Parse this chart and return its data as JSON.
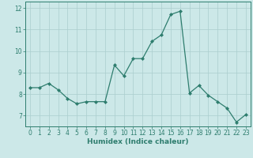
{
  "x": [
    0,
    1,
    2,
    3,
    4,
    5,
    6,
    7,
    8,
    9,
    10,
    11,
    12,
    13,
    14,
    15,
    16,
    17,
    18,
    19,
    20,
    21,
    22,
    23
  ],
  "y": [
    8.3,
    8.3,
    8.5,
    8.2,
    7.8,
    7.55,
    7.65,
    7.65,
    7.65,
    9.35,
    8.85,
    9.65,
    9.65,
    10.45,
    10.75,
    11.7,
    11.85,
    8.05,
    8.4,
    7.95,
    7.65,
    7.35,
    6.7,
    7.05
  ],
  "xlabel": "Humidex (Indice chaleur)",
  "ylim": [
    6.5,
    12.3
  ],
  "xlim": [
    -0.5,
    23.5
  ],
  "yticks": [
    7,
    8,
    9,
    10,
    11,
    12
  ],
  "xticks": [
    0,
    1,
    2,
    3,
    4,
    5,
    6,
    7,
    8,
    9,
    10,
    11,
    12,
    13,
    14,
    15,
    16,
    17,
    18,
    19,
    20,
    21,
    22,
    23
  ],
  "line_color": "#2e7d6e",
  "marker": "D",
  "marker_size": 2.0,
  "bg_color": "#cce8e8",
  "grid_color": "#aacece",
  "tick_label_fontsize": 5.5,
  "xlabel_fontsize": 6.5,
  "line_width": 0.9
}
